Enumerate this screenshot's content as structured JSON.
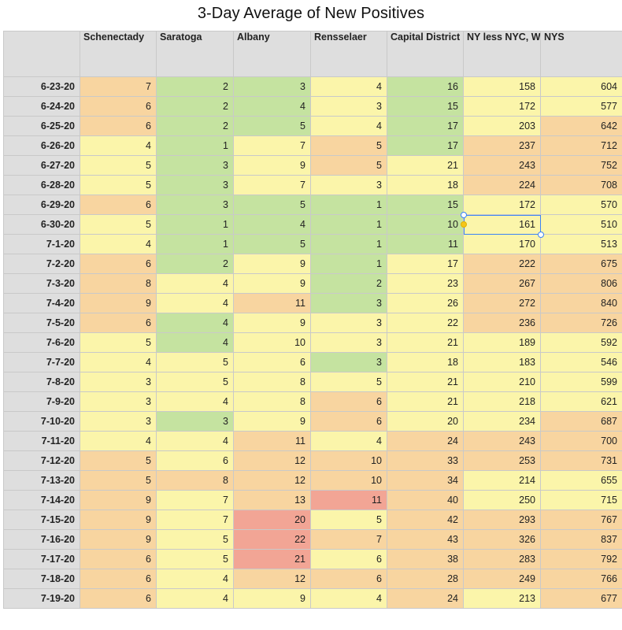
{
  "title": "3-Day Average of New Positives",
  "columns": [
    "Schenectady",
    "Saratoga",
    "Albany",
    "Rensselaer",
    "Capital District",
    "NY less NYC, Westchester, Long Island",
    "NYS"
  ],
  "palette": {
    "green": "#c5e3a0",
    "yellow": "#fbf5aa",
    "orange": "#f8d5a0",
    "red": "#f2a595",
    "header": "#dedede",
    "selection": "#3b82f6"
  },
  "rows": [
    {
      "date": "6-23-20",
      "values": [
        7,
        2,
        3,
        4,
        16,
        158,
        604
      ],
      "colors": [
        "o",
        "g",
        "g",
        "y",
        "g",
        "y",
        "y"
      ]
    },
    {
      "date": "6-24-20",
      "values": [
        6,
        2,
        4,
        3,
        15,
        172,
        577
      ],
      "colors": [
        "o",
        "g",
        "g",
        "y",
        "g",
        "y",
        "y"
      ]
    },
    {
      "date": "6-25-20",
      "values": [
        6,
        2,
        5,
        4,
        17,
        203,
        642
      ],
      "colors": [
        "o",
        "g",
        "g",
        "y",
        "g",
        "y",
        "o"
      ]
    },
    {
      "date": "6-26-20",
      "values": [
        4,
        1,
        7,
        5,
        17,
        237,
        712
      ],
      "colors": [
        "y",
        "g",
        "y",
        "o",
        "g",
        "o",
        "o"
      ]
    },
    {
      "date": "6-27-20",
      "values": [
        5,
        3,
        9,
        5,
        21,
        243,
        752
      ],
      "colors": [
        "y",
        "g",
        "y",
        "o",
        "y",
        "o",
        "o"
      ]
    },
    {
      "date": "6-28-20",
      "values": [
        5,
        3,
        7,
        3,
        18,
        224,
        708
      ],
      "colors": [
        "y",
        "g",
        "y",
        "y",
        "y",
        "o",
        "o"
      ]
    },
    {
      "date": "6-29-20",
      "values": [
        6,
        3,
        5,
        1,
        15,
        172,
        570
      ],
      "colors": [
        "o",
        "g",
        "g",
        "g",
        "g",
        "y",
        "y"
      ]
    },
    {
      "date": "6-30-20",
      "values": [
        5,
        1,
        4,
        1,
        10,
        161,
        510
      ],
      "colors": [
        "y",
        "g",
        "g",
        "g",
        "g",
        "y",
        "y"
      ]
    },
    {
      "date": "7-1-20",
      "values": [
        4,
        1,
        5,
        1,
        11,
        170,
        513
      ],
      "colors": [
        "y",
        "g",
        "g",
        "g",
        "g",
        "y",
        "y"
      ]
    },
    {
      "date": "7-2-20",
      "values": [
        6,
        2,
        9,
        1,
        17,
        222,
        675
      ],
      "colors": [
        "o",
        "g",
        "y",
        "g",
        "y",
        "o",
        "o"
      ]
    },
    {
      "date": "7-3-20",
      "values": [
        8,
        4,
        9,
        2,
        23,
        267,
        806
      ],
      "colors": [
        "o",
        "y",
        "y",
        "g",
        "y",
        "o",
        "o"
      ]
    },
    {
      "date": "7-4-20",
      "values": [
        9,
        4,
        11,
        3,
        26,
        272,
        840
      ],
      "colors": [
        "o",
        "y",
        "o",
        "g",
        "y",
        "o",
        "o"
      ]
    },
    {
      "date": "7-5-20",
      "values": [
        6,
        4,
        9,
        3,
        22,
        236,
        726
      ],
      "colors": [
        "o",
        "g",
        "y",
        "y",
        "y",
        "o",
        "o"
      ]
    },
    {
      "date": "7-6-20",
      "values": [
        5,
        4,
        10,
        3,
        21,
        189,
        592
      ],
      "colors": [
        "y",
        "g",
        "y",
        "y",
        "y",
        "y",
        "y"
      ]
    },
    {
      "date": "7-7-20",
      "values": [
        4,
        5,
        6,
        3,
        18,
        183,
        546
      ],
      "colors": [
        "y",
        "y",
        "y",
        "g",
        "y",
        "y",
        "y"
      ]
    },
    {
      "date": "7-8-20",
      "values": [
        3,
        5,
        8,
        5,
        21,
        210,
        599
      ],
      "colors": [
        "y",
        "y",
        "y",
        "y",
        "y",
        "y",
        "y"
      ]
    },
    {
      "date": "7-9-20",
      "values": [
        3,
        4,
        8,
        6,
        21,
        218,
        621
      ],
      "colors": [
        "y",
        "y",
        "y",
        "o",
        "y",
        "y",
        "y"
      ]
    },
    {
      "date": "7-10-20",
      "values": [
        3,
        3,
        9,
        6,
        20,
        234,
        687
      ],
      "colors": [
        "y",
        "g",
        "y",
        "o",
        "y",
        "y",
        "o"
      ]
    },
    {
      "date": "7-11-20",
      "values": [
        4,
        4,
        11,
        4,
        24,
        243,
        700
      ],
      "colors": [
        "y",
        "y",
        "o",
        "y",
        "o",
        "o",
        "o"
      ]
    },
    {
      "date": "7-12-20",
      "values": [
        5,
        6,
        12,
        10,
        33,
        253,
        731
      ],
      "colors": [
        "o",
        "y",
        "o",
        "o",
        "o",
        "o",
        "o"
      ]
    },
    {
      "date": "7-13-20",
      "values": [
        5,
        8,
        12,
        10,
        34,
        214,
        655
      ],
      "colors": [
        "o",
        "o",
        "o",
        "o",
        "o",
        "y",
        "y"
      ]
    },
    {
      "date": "7-14-20",
      "values": [
        9,
        7,
        13,
        11,
        40,
        250,
        715
      ],
      "colors": [
        "o",
        "y",
        "o",
        "r",
        "o",
        "y",
        "y"
      ]
    },
    {
      "date": "7-15-20",
      "values": [
        9,
        7,
        20,
        5,
        42,
        293,
        767
      ],
      "colors": [
        "o",
        "y",
        "r",
        "y",
        "o",
        "o",
        "o"
      ]
    },
    {
      "date": "7-16-20",
      "values": [
        9,
        5,
        22,
        7,
        43,
        326,
        837
      ],
      "colors": [
        "o",
        "y",
        "r",
        "o",
        "o",
        "o",
        "o"
      ]
    },
    {
      "date": "7-17-20",
      "values": [
        6,
        5,
        21,
        6,
        38,
        283,
        792
      ],
      "colors": [
        "o",
        "y",
        "r",
        "y",
        "o",
        "o",
        "o"
      ]
    },
    {
      "date": "7-18-20",
      "values": [
        6,
        4,
        12,
        6,
        28,
        249,
        766
      ],
      "colors": [
        "o",
        "y",
        "o",
        "o",
        "o",
        "o",
        "o"
      ]
    },
    {
      "date": "7-19-20",
      "values": [
        6,
        4,
        9,
        4,
        24,
        213,
        677
      ],
      "colors": [
        "o",
        "y",
        "y",
        "y",
        "o",
        "y",
        "o"
      ]
    }
  ],
  "selected_cell": {
    "row_date": "6-30-20",
    "column": "NY less NYC, Westchester, Long Island",
    "value": 161
  }
}
